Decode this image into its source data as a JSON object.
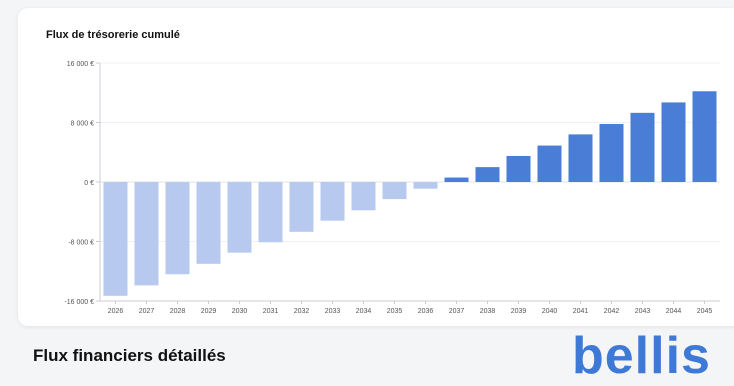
{
  "chart_title": "Flux de trésorerie cumulé",
  "section_title": "Flux financiers détaillés",
  "brand_logo": "bellis",
  "colors": {
    "positive_bar": "#4a7dd6",
    "negative_bar": "#b7c9ee",
    "axis": "#c9ccd3",
    "tick_text": "#555555",
    "logo": "#3f79d6"
  },
  "chart_data": {
    "type": "bar",
    "title": "Flux de trésorerie cumulé",
    "xlabel": "",
    "ylabel": "",
    "ylim": [
      -16000,
      16000
    ],
    "y_ticks": [
      16000,
      8000,
      0,
      -8000,
      -16000
    ],
    "y_tick_labels": [
      "16 000 €",
      "8 000 €",
      "0 €",
      "-8 000 €",
      "-16 000 €"
    ],
    "grid": "horizontal",
    "categories": [
      "2026",
      "2027",
      "2028",
      "2029",
      "2030",
      "2031",
      "2032",
      "2033",
      "2034",
      "2035",
      "2036",
      "2037",
      "2038",
      "2039",
      "2040",
      "2041",
      "2042",
      "2043",
      "2044",
      "2045"
    ],
    "values": [
      -15300,
      -13900,
      -12400,
      -11000,
      -9500,
      -8100,
      -6700,
      -5200,
      -3800,
      -2300,
      -900,
      600,
      2000,
      3500,
      4900,
      6400,
      7800,
      9300,
      10700,
      12200
    ]
  }
}
